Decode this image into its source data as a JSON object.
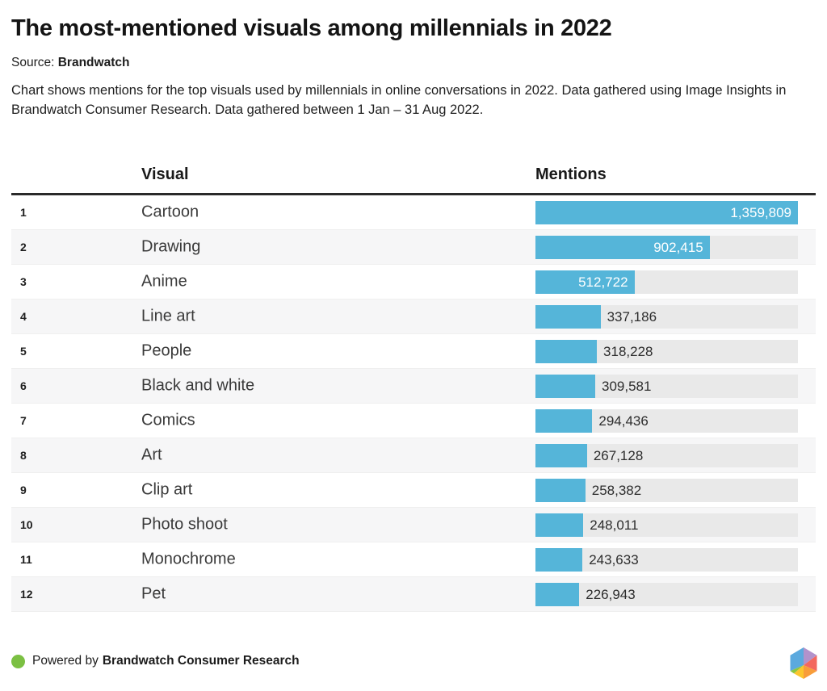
{
  "header": {
    "title": "The most-mentioned visuals among millennials in 2022",
    "source_prefix": "Source:",
    "source_name": "Brandwatch",
    "description": "Chart shows mentions for the top visuals used by millennials in online conversations in 2022. Data gathered using Image Insights in Brandwatch Consumer Research. Data gathered between 1 Jan – 31 Aug 2022."
  },
  "chart_data": {
    "type": "bar",
    "orientation": "horizontal",
    "title": "The most-mentioned visuals among millennials in 2022",
    "columns": {
      "visual": "Visual",
      "mentions": "Mentions"
    },
    "max_value": 1359809,
    "bar_color": "#55b5d9",
    "track_color": "#e9e9e9",
    "rows": [
      {
        "rank": "1",
        "label": "Cartoon",
        "value": 1359809,
        "value_formatted": "1,359,809",
        "label_position": "inside"
      },
      {
        "rank": "2",
        "label": "Drawing",
        "value": 902415,
        "value_formatted": "902,415",
        "label_position": "inside"
      },
      {
        "rank": "3",
        "label": "Anime",
        "value": 512722,
        "value_formatted": "512,722",
        "label_position": "inside"
      },
      {
        "rank": "4",
        "label": "Line art",
        "value": 337186,
        "value_formatted": "337,186",
        "label_position": "outside"
      },
      {
        "rank": "5",
        "label": "People",
        "value": 318228,
        "value_formatted": "318,228",
        "label_position": "outside"
      },
      {
        "rank": "6",
        "label": "Black and white",
        "value": 309581,
        "value_formatted": "309,581",
        "label_position": "outside"
      },
      {
        "rank": "7",
        "label": "Comics",
        "value": 294436,
        "value_formatted": "294,436",
        "label_position": "outside"
      },
      {
        "rank": "8",
        "label": "Art",
        "value": 267128,
        "value_formatted": "267,128",
        "label_position": "outside"
      },
      {
        "rank": "9",
        "label": "Clip art",
        "value": 258382,
        "value_formatted": "258,382",
        "label_position": "outside"
      },
      {
        "rank": "10",
        "label": "Photo shoot",
        "value": 248011,
        "value_formatted": "248,011",
        "label_position": "outside"
      },
      {
        "rank": "11",
        "label": "Monochrome",
        "value": 243633,
        "value_formatted": "243,633",
        "label_position": "outside"
      },
      {
        "rank": "12",
        "label": "Pet",
        "value": 226943,
        "value_formatted": "226,943",
        "label_position": "outside"
      }
    ]
  },
  "footer": {
    "powered_prefix": "Powered by",
    "brand": "Brandwatch Consumer Research",
    "dot_color": "#7bc043"
  },
  "logo": {
    "name": "brandwatch-hexagon-logo",
    "colors": {
      "blue": "#5ba9de",
      "purple": "#b292cb",
      "red": "#f3685f",
      "orange": "#f89d3a",
      "yellow": "#fcc52e",
      "green": "#8dc63f"
    }
  }
}
